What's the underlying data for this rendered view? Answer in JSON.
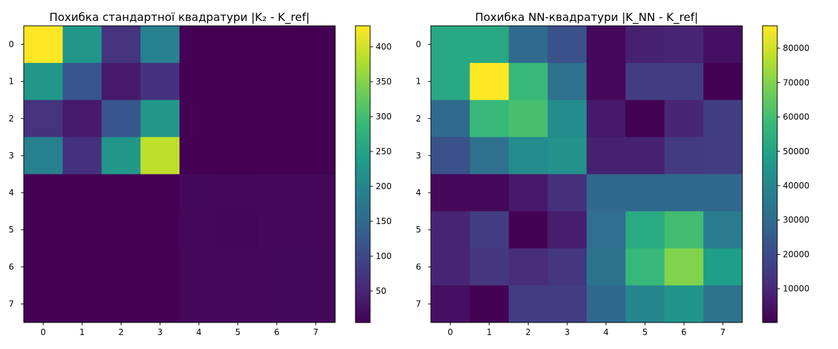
{
  "chart_data": [
    {
      "type": "heatmap",
      "title": "Похибка стандартної квадратури |K₂ - K_ref|",
      "x_tick_labels": [
        "0",
        "1",
        "2",
        "3",
        "4",
        "5",
        "6",
        "7"
      ],
      "y_tick_labels": [
        "0",
        "1",
        "2",
        "3",
        "4",
        "5",
        "6",
        "7"
      ],
      "colormap": "viridis",
      "colorbar": {
        "vmin": 5,
        "vmax": 430,
        "tick_values": [
          50,
          100,
          150,
          200,
          250,
          300,
          350,
          400
        ],
        "tick_labels": [
          "50",
          "100",
          "150",
          "200",
          "250",
          "300",
          "350",
          "400"
        ]
      },
      "values": [
        [
          430,
          230,
          70,
          190,
          5,
          5,
          5,
          5
        ],
        [
          230,
          120,
          35,
          65,
          5,
          5,
          5,
          5
        ],
        [
          70,
          35,
          120,
          230,
          5,
          5,
          5,
          5
        ],
        [
          190,
          65,
          230,
          390,
          5,
          5,
          5,
          5
        ],
        [
          5,
          5,
          5,
          5,
          15,
          12,
          14,
          14
        ],
        [
          5,
          5,
          5,
          5,
          12,
          11,
          13,
          13
        ],
        [
          5,
          5,
          5,
          5,
          14,
          13,
          15,
          15
        ],
        [
          5,
          5,
          5,
          5,
          14,
          13,
          15,
          15
        ]
      ]
    },
    {
      "type": "heatmap",
      "title": "Похибка NN-квадратури |K_NN - K_ref|",
      "x_tick_labels": [
        "0",
        "1",
        "2",
        "3",
        "4",
        "5",
        "6",
        "7"
      ],
      "y_tick_labels": [
        "0",
        "1",
        "2",
        "3",
        "4",
        "5",
        "6",
        "7"
      ],
      "colormap": "viridis",
      "colorbar": {
        "vmin": 200,
        "vmax": 86500,
        "tick_values": [
          10000,
          20000,
          30000,
          40000,
          50000,
          60000,
          70000,
          80000
        ],
        "tick_labels": [
          "10000",
          "20000",
          "30000",
          "40000",
          "50000",
          "60000",
          "70000",
          "80000"
        ]
      },
      "values": [
        [
          52000,
          52000,
          30000,
          22000,
          2000,
          8000,
          9000,
          4000
        ],
        [
          52000,
          86500,
          58000,
          32000,
          2000,
          16000,
          16000,
          500
        ],
        [
          30000,
          58000,
          61000,
          42000,
          6000,
          500,
          9000,
          16000
        ],
        [
          22000,
          32000,
          42000,
          44000,
          8000,
          8000,
          15000,
          16000
        ],
        [
          2000,
          2000,
          6000,
          12000,
          29000,
          29000,
          29000,
          29000
        ],
        [
          9000,
          16000,
          500,
          7000,
          31000,
          53000,
          60000,
          36000
        ],
        [
          9000,
          14000,
          11000,
          14000,
          33000,
          58000,
          70000,
          48000
        ],
        [
          4000,
          500,
          16000,
          16000,
          29000,
          40000,
          45000,
          33000
        ]
      ]
    }
  ]
}
